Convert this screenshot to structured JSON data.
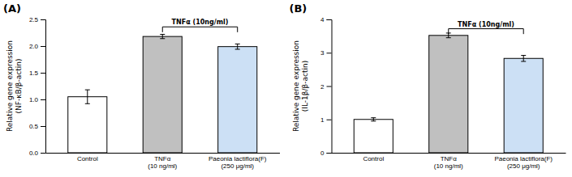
{
  "chart_data": [
    {
      "type": "bar",
      "title": "(A)",
      "y_label": [
        "Relative gene expression",
        "(NF-κB/β-actin)"
      ],
      "categories": [
        "Control",
        "TNFα\n(10 ng/ml)",
        "Paeonia lactiflora(F)\n(250 μg/ml)"
      ],
      "values": [
        1.05,
        2.18,
        1.99
      ],
      "errors": [
        0.13,
        0.04,
        0.05
      ],
      "colors": [
        "#ffffff",
        "#c0c0c0",
        "#cce0f5"
      ],
      "ylim": [
        0,
        2.5
      ],
      "yticks": [
        {
          "value": 0,
          "label": "0.0"
        },
        0.5,
        {
          "value": 1,
          "label": "1.0"
        },
        1.5,
        {
          "value": 2,
          "label": "2.0"
        },
        2.5
      ],
      "annotations": [
        {
          "text": "TNFα (10ng/ml)",
          "x": [
            "TNFα\n(10 ng/ml)",
            "Paeonia lactiflora(F)\n(250 μg/ml)"
          ],
          "y": 2.36
        }
      ]
    },
    {
      "type": "bar",
      "title": "(B)",
      "y_label": [
        "Relative gene expression",
        "(IL-1β/β-actin)"
      ],
      "categories": [
        "Control",
        "TNFα\n(10 ng/ml)",
        "Paeonia lactiflora(F)\n(250 μg/ml)"
      ],
      "values": [
        1.0,
        3.52,
        2.83
      ],
      "errors": [
        0.05,
        0.07,
        0.09
      ],
      "colors": [
        "#ffffff",
        "#c0c0c0",
        "#cce0f5"
      ],
      "ylim": [
        0,
        4
      ],
      "yticks": [
        0,
        1,
        2,
        3,
        4
      ],
      "annotations": [
        {
          "text": "TNFα (10ng/ml)",
          "x": [
            "TNFα\n(10 ng/ml)",
            "Paeonia lactiflora(F)\n(250 μg/ml)"
          ],
          "y": 3.72
        }
      ]
    }
  ]
}
